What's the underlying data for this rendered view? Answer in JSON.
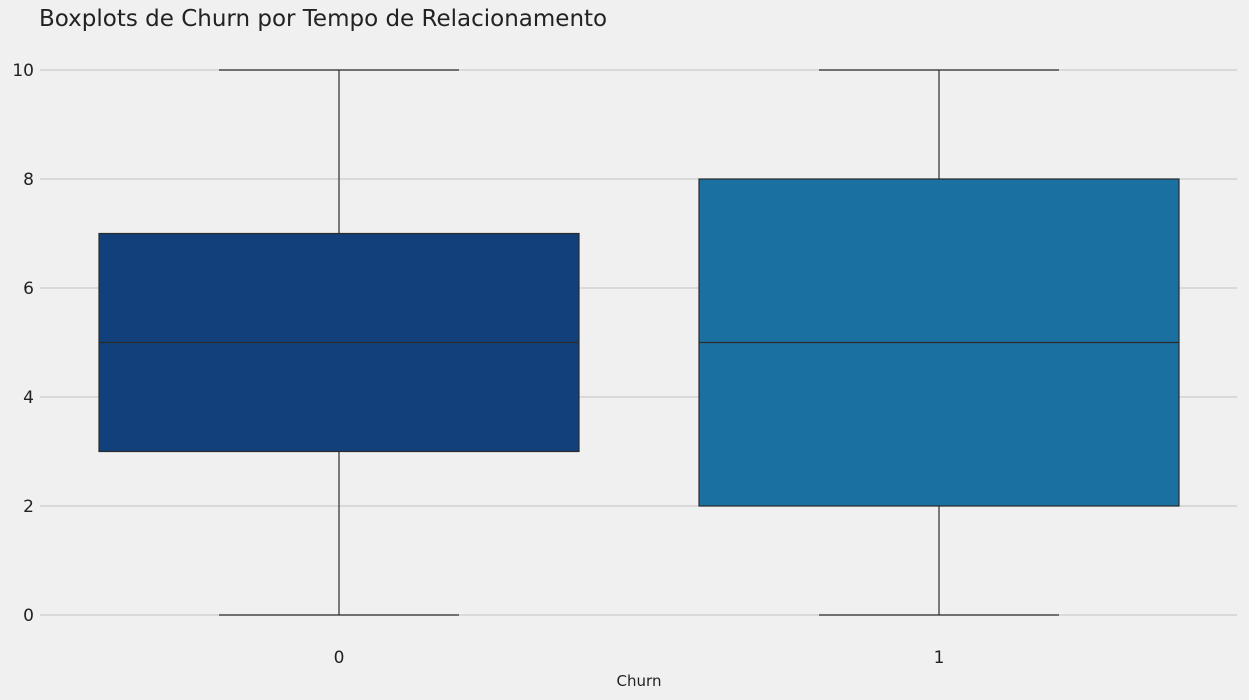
{
  "chart_data": {
    "type": "boxplot",
    "title": "Boxplots de Churn por Tempo de Relacionamento",
    "xlabel": "Churn",
    "ylabel": "",
    "categories": [
      "0",
      "1"
    ],
    "boxes": [
      {
        "category": "0",
        "whisker_low": 0,
        "q1": 3,
        "median": 5,
        "q3": 7,
        "whisker_high": 10,
        "color": "#12407a"
      },
      {
        "category": "1",
        "whisker_low": 0,
        "q1": 2,
        "median": 5,
        "q3": 8,
        "whisker_high": 10,
        "color": "#1a71a1"
      }
    ],
    "y_ticks": [
      "0",
      "2",
      "4",
      "6",
      "8",
      "10"
    ],
    "ylim": [
      -0.5,
      10.5
    ],
    "grid": "horizontal",
    "colors": {
      "background": "#f0f0f0",
      "grid": "#cbcbcb",
      "line": "#2b2b2b"
    }
  }
}
